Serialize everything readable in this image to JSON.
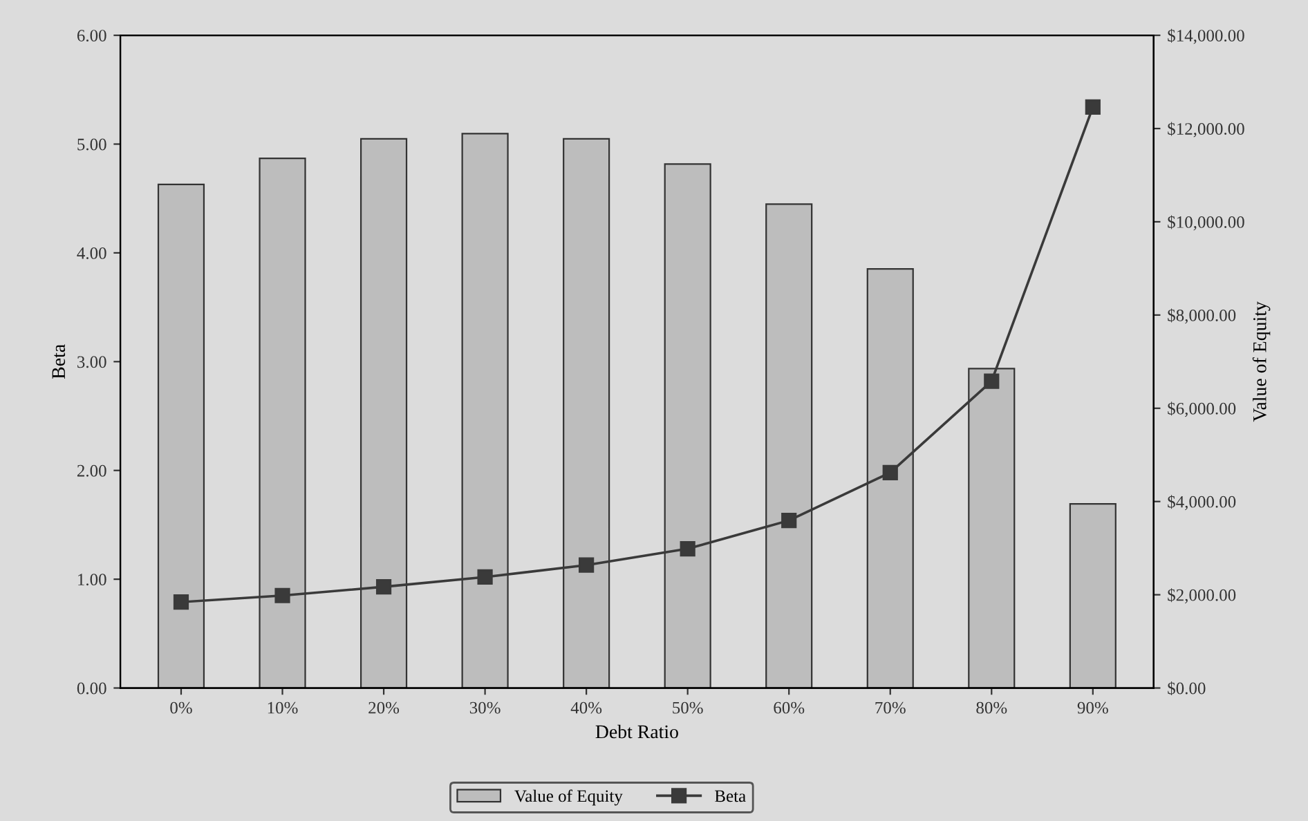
{
  "chart_data": {
    "type": "bar",
    "xlabel": "Debt Ratio",
    "ylabel": "Beta",
    "y2label": "Value of Equity",
    "categories": [
      "0%",
      "10%",
      "20%",
      "30%",
      "40%",
      "50%",
      "60%",
      "70%",
      "80%",
      "90%"
    ],
    "series": [
      {
        "name": "Value of Equity",
        "axis": "y2",
        "color": "#bdbdbd",
        "values": [
          10800,
          11360,
          11780,
          11890,
          11780,
          11240,
          10380,
          8990,
          6850,
          3950
        ]
      },
      {
        "name": "Beta",
        "type": "line",
        "axis": "y",
        "color": "#3a3a3a",
        "marker": "square",
        "values": [
          0.79,
          0.85,
          0.93,
          1.02,
          1.13,
          1.28,
          1.54,
          1.98,
          2.82,
          5.34
        ]
      }
    ],
    "ylim": [
      0,
      6
    ],
    "yticks": [
      {
        "value": 0,
        "label": "0.00"
      },
      {
        "value": 1,
        "label": "1.00"
      },
      {
        "value": 2,
        "label": "2.00"
      },
      {
        "value": 3,
        "label": "3.00"
      },
      {
        "value": 4,
        "label": "4.00"
      },
      {
        "value": 5,
        "label": "5.00"
      },
      {
        "value": 6,
        "label": "6.00"
      }
    ],
    "y2lim": [
      0,
      14000
    ],
    "y2ticks": [
      {
        "value": 0,
        "label": "$0.00"
      },
      {
        "value": 2000,
        "label": "$2,000.00"
      },
      {
        "value": 4000,
        "label": "$4,000.00"
      },
      {
        "value": 6000,
        "label": "$6,000.00"
      },
      {
        "value": 8000,
        "label": "$8,000.00"
      },
      {
        "value": 10000,
        "label": "$10,000.00"
      },
      {
        "value": 12000,
        "label": "$12,000.00"
      },
      {
        "value": 14000,
        "label": "$14,000.00"
      }
    ],
    "legend": "bottom",
    "grid": false
  }
}
